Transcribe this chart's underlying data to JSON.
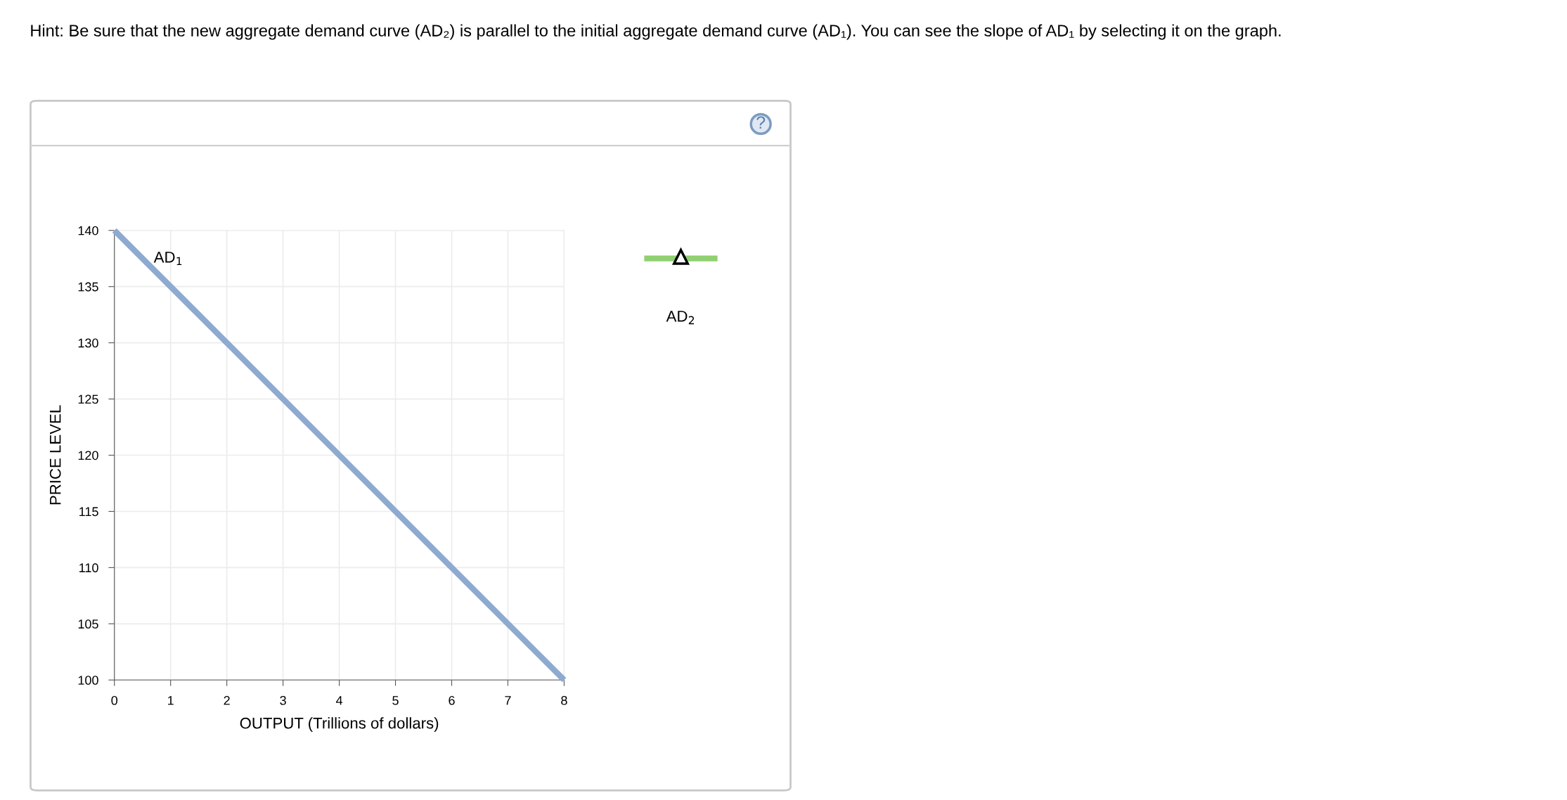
{
  "chart_data": {
    "type": "line",
    "title": "Hint: Be sure that the new aggregate demand curve (AD₂) is parallel to the initial aggregate demand curve (AD₁). You can see the slope of AD₁ by selecting it on the graph.",
    "xlabel": "OUTPUT (Trillions of dollars)",
    "ylabel": "PRICE LEVEL",
    "series": [
      {
        "name": "AD$_{1}$",
        "color": "#8eaad0",
        "x": [
          0,
          8
        ],
        "values": [
          140,
          100
        ]
      }
    ],
    "xlim": [
      0,
      8
    ],
    "xticks": [
      0,
      1,
      2,
      3,
      4,
      5,
      6,
      7,
      8
    ],
    "ylim": [
      100,
      140
    ],
    "yticks": [
      100,
      105,
      110,
      115,
      120,
      125,
      130,
      135,
      140
    ],
    "grid": true,
    "marker": "none",
    "line_style": "solid",
    "annotations": [
      "AD$_{2}$",
      "?"
    ]
  }
}
